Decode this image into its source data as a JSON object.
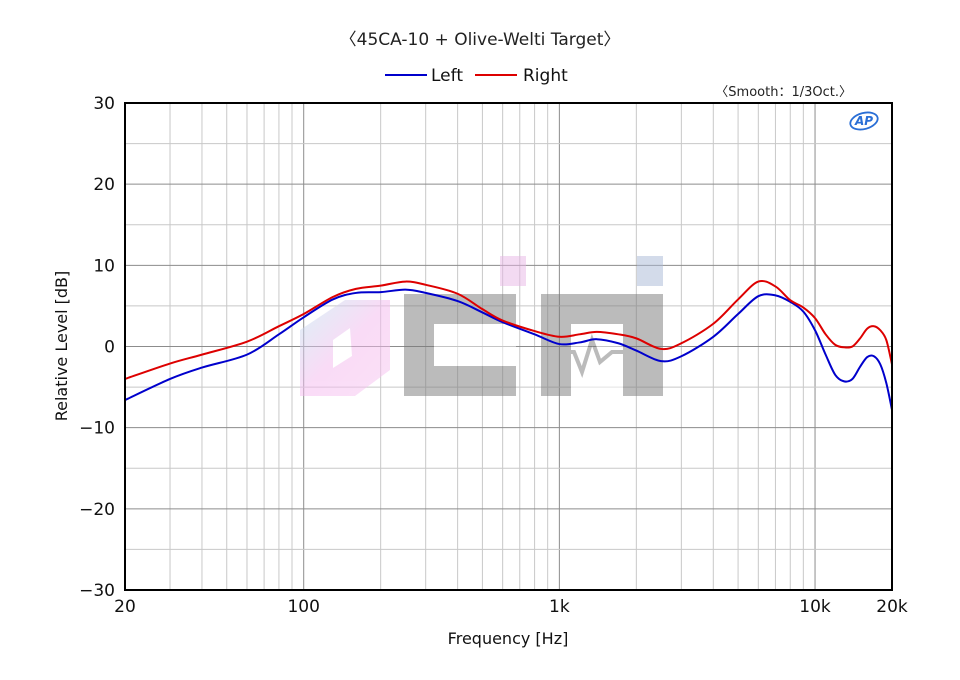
{
  "chart_data": {
    "type": "line",
    "title": "〈45CA-10 + Olive-Welti Target〉",
    "note": "〈Smooth：1/3Oct.〉",
    "xlabel": "Frequency [Hz]",
    "ylabel": "Relative Level [dB]",
    "xscale": "log",
    "xlim": [
      20,
      20000
    ],
    "ylim": [
      -30,
      30
    ],
    "grid": true,
    "legend_position": "top-center",
    "x_ticks": [
      {
        "value": 20,
        "label": "20"
      },
      {
        "value": 100,
        "label": "100"
      },
      {
        "value": 1000,
        "label": "1k"
      },
      {
        "value": 10000,
        "label": "10k"
      },
      {
        "value": 20000,
        "label": "20k"
      }
    ],
    "y_ticks": [
      {
        "value": 30,
        "label": "30"
      },
      {
        "value": 20,
        "label": "20"
      },
      {
        "value": 10,
        "label": "10"
      },
      {
        "value": 0,
        "label": "0"
      },
      {
        "value": -10,
        "label": "−10"
      },
      {
        "value": -20,
        "label": "−20"
      },
      {
        "value": -30,
        "label": "−30"
      }
    ],
    "series": [
      {
        "name": "Left",
        "color": "#0000cc",
        "points": [
          [
            20,
            -6.6
          ],
          [
            30,
            -4.0
          ],
          [
            40,
            -2.6
          ],
          [
            60,
            -1.0
          ],
          [
            80,
            1.5
          ],
          [
            100,
            3.6
          ],
          [
            130,
            5.8
          ],
          [
            160,
            6.6
          ],
          [
            200,
            6.7
          ],
          [
            250,
            7.0
          ],
          [
            300,
            6.6
          ],
          [
            400,
            5.6
          ],
          [
            500,
            4.2
          ],
          [
            600,
            3.0
          ],
          [
            800,
            1.5
          ],
          [
            1000,
            0.3
          ],
          [
            1200,
            0.5
          ],
          [
            1400,
            0.9
          ],
          [
            1700,
            0.4
          ],
          [
            2000,
            -0.5
          ],
          [
            2500,
            -1.8
          ],
          [
            3000,
            -1.2
          ],
          [
            4000,
            1.2
          ],
          [
            5000,
            4.0
          ],
          [
            6000,
            6.2
          ],
          [
            7000,
            6.3
          ],
          [
            8000,
            5.5
          ],
          [
            9000,
            4.3
          ],
          [
            10000,
            2.0
          ],
          [
            11000,
            -1.0
          ],
          [
            12000,
            -3.5
          ],
          [
            13000,
            -4.3
          ],
          [
            14000,
            -4.0
          ],
          [
            15000,
            -2.5
          ],
          [
            16000,
            -1.3
          ],
          [
            17000,
            -1.2
          ],
          [
            18000,
            -2.2
          ],
          [
            19000,
            -4.5
          ],
          [
            20000,
            -7.8
          ]
        ]
      },
      {
        "name": "Right",
        "color": "#dd0000",
        "points": [
          [
            20,
            -4.0
          ],
          [
            30,
            -2.1
          ],
          [
            40,
            -1.0
          ],
          [
            60,
            0.6
          ],
          [
            80,
            2.5
          ],
          [
            100,
            4.0
          ],
          [
            130,
            6.1
          ],
          [
            160,
            7.1
          ],
          [
            200,
            7.5
          ],
          [
            250,
            8.0
          ],
          [
            300,
            7.6
          ],
          [
            400,
            6.5
          ],
          [
            500,
            4.6
          ],
          [
            600,
            3.2
          ],
          [
            800,
            1.9
          ],
          [
            1000,
            1.2
          ],
          [
            1200,
            1.5
          ],
          [
            1400,
            1.8
          ],
          [
            1700,
            1.5
          ],
          [
            2000,
            1.0
          ],
          [
            2500,
            -0.3
          ],
          [
            3000,
            0.4
          ],
          [
            4000,
            2.8
          ],
          [
            5000,
            5.8
          ],
          [
            6000,
            8.0
          ],
          [
            7000,
            7.4
          ],
          [
            8000,
            5.7
          ],
          [
            9000,
            4.8
          ],
          [
            10000,
            3.5
          ],
          [
            11000,
            1.5
          ],
          [
            12000,
            0.2
          ],
          [
            13000,
            -0.1
          ],
          [
            14000,
            0.0
          ],
          [
            15000,
            1.0
          ],
          [
            16000,
            2.2
          ],
          [
            17000,
            2.5
          ],
          [
            18000,
            2.0
          ],
          [
            19000,
            0.8
          ],
          [
            20000,
            -2.2
          ]
        ]
      }
    ]
  },
  "logo": {
    "text": "AP",
    "color": "#2a6fd6"
  }
}
